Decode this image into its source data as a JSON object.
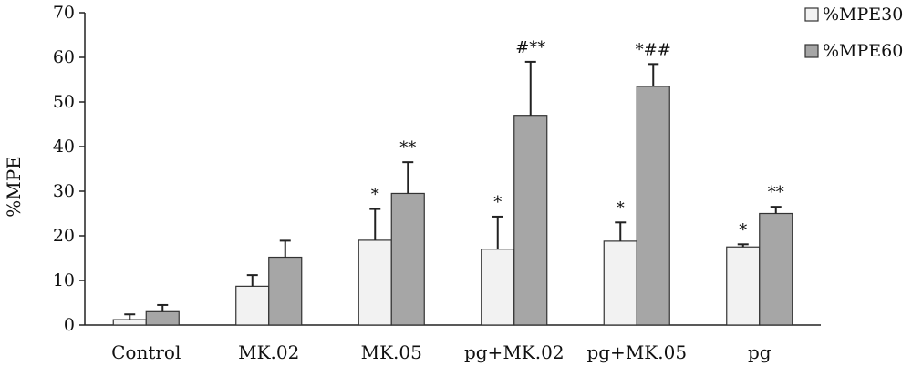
{
  "chart_data": {
    "type": "bar",
    "title": "",
    "xlabel": "",
    "ylabel": "%MPE",
    "ylim": [
      0,
      70
    ],
    "yticks": [
      0,
      10,
      20,
      30,
      40,
      50,
      60,
      70
    ],
    "grid": false,
    "legend_position": "top-right",
    "categories": [
      "Control",
      "MK.02",
      "MK.05",
      "pg+MK.02",
      "pg+MK.05",
      "pg"
    ],
    "series": [
      {
        "name": "%MPE30",
        "color": "#f2f2f2",
        "values": [
          1.2,
          8.7,
          19.0,
          17.0,
          18.8,
          17.5
        ],
        "error": [
          1.2,
          2.5,
          7.0,
          7.3,
          4.2,
          0.6
        ],
        "annotations": [
          "",
          "",
          "*",
          "*",
          "*",
          "*"
        ]
      },
      {
        "name": "%MPE60",
        "color": "#a6a6a6",
        "values": [
          3.0,
          15.2,
          29.5,
          47.0,
          53.5,
          25.0
        ],
        "error": [
          1.5,
          3.7,
          7.0,
          12.0,
          5.0,
          1.5
        ],
        "annotations": [
          "",
          "",
          "**",
          "#**",
          "*##",
          "**"
        ]
      }
    ]
  }
}
